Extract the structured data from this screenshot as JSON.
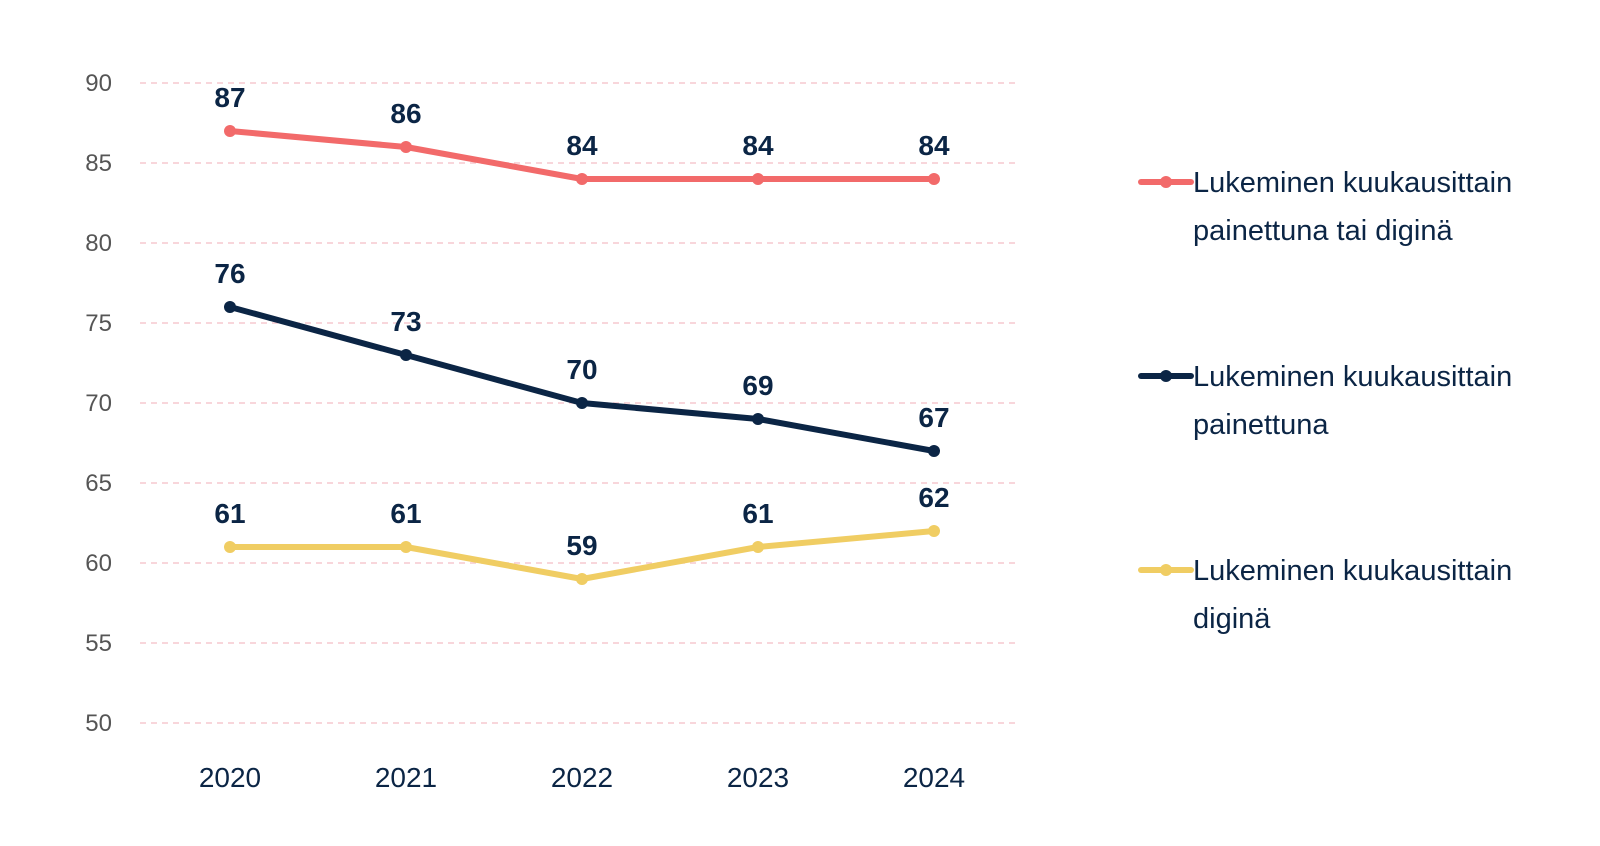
{
  "chart_data": {
    "type": "line",
    "title": "",
    "xlabel": "",
    "ylabel": "",
    "x": [
      "2020",
      "2021",
      "2022",
      "2023",
      "2024"
    ],
    "ylim": [
      50,
      90
    ],
    "yticks": [
      "50",
      "55",
      "60",
      "65",
      "70",
      "75",
      "80",
      "85",
      "90"
    ],
    "grid": "horizontal dashed",
    "legend_position": "right",
    "series": [
      {
        "name": "Lukeminen kuukausittain painettuna tai diginä",
        "name_lines": [
          "Lukeminen kuukausittain",
          "painettuna tai diginä"
        ],
        "color": "#f26a6a",
        "values": [
          87,
          86,
          84,
          84,
          84
        ],
        "labels": [
          "87",
          "86",
          "84",
          "84",
          "84"
        ]
      },
      {
        "name": "Lukeminen kuukausittain painettuna",
        "name_lines": [
          "Lukeminen kuukausittain",
          "painettuna"
        ],
        "color": "#0b2545",
        "values": [
          76,
          73,
          70,
          69,
          67
        ],
        "labels": [
          "76",
          "73",
          "70",
          "69",
          "67"
        ]
      },
      {
        "name": "Lukeminen kuukausittain diginä",
        "name_lines": [
          "Lukeminen kuukausittain",
          "diginä"
        ],
        "color": "#f0cd63",
        "values": [
          61,
          61,
          59,
          61,
          62
        ],
        "labels": [
          "61",
          "61",
          "59",
          "61",
          "62"
        ]
      }
    ]
  },
  "colors": {
    "grid": "#f6c9cf",
    "text": "#0b2545",
    "tick": "#555555"
  }
}
